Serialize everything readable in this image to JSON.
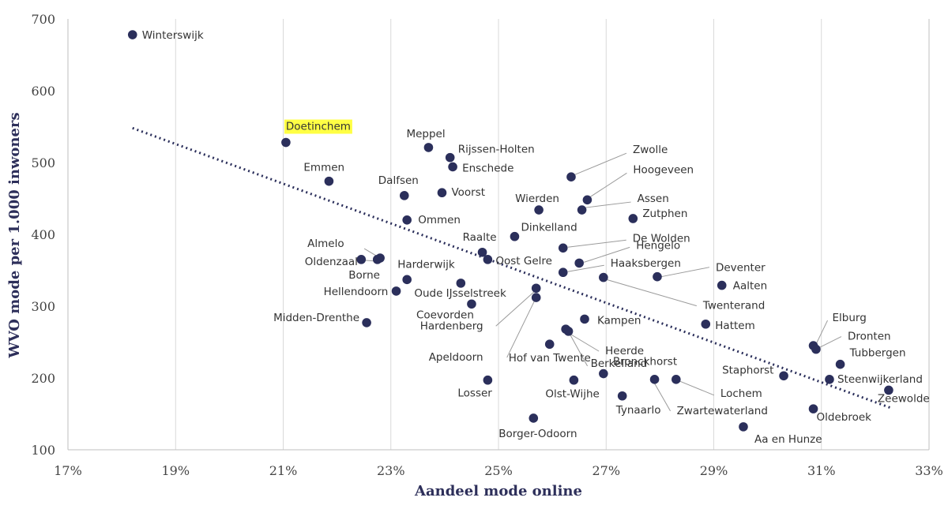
{
  "chart_data": {
    "type": "scatter",
    "title": "",
    "xlabel": "Aandeel mode online",
    "ylabel": "WVO mode per 1.000 inwoners",
    "xlim": [
      17,
      33
    ],
    "ylim": [
      100,
      700
    ],
    "x_ticks": [
      17,
      19,
      21,
      23,
      25,
      27,
      29,
      31,
      33
    ],
    "x_tick_labels": [
      "17%",
      "19%",
      "21%",
      "23%",
      "25%",
      "27%",
      "29%",
      "31%",
      "33%"
    ],
    "y_ticks": [
      100,
      200,
      300,
      400,
      500,
      600,
      700
    ],
    "y_tick_labels": [
      "100",
      "200",
      "300",
      "400",
      "500",
      "600",
      "700"
    ],
    "grid": "vertical",
    "highlight_color": "#ffff44",
    "point_color": "#2b2f5b",
    "trendline": {
      "style": "dotted",
      "x": [
        18.2,
        32.3
      ],
      "y": [
        548,
        158
      ]
    },
    "points": [
      {
        "name": "Winterswijk",
        "x": 18.2,
        "y": 678
      },
      {
        "name": "Doetinchem",
        "x": 21.05,
        "y": 528,
        "highlight": true
      },
      {
        "name": "Emmen",
        "x": 21.85,
        "y": 474
      },
      {
        "name": "Meppel",
        "x": 23.7,
        "y": 521
      },
      {
        "name": "Rijssen-Holten",
        "x": 24.1,
        "y": 507
      },
      {
        "name": "Enschede",
        "x": 24.15,
        "y": 494
      },
      {
        "name": "Dalfsen",
        "x": 23.25,
        "y": 454
      },
      {
        "name": "Voorst",
        "x": 23.95,
        "y": 458
      },
      {
        "name": "Ommen",
        "x": 23.3,
        "y": 420
      },
      {
        "name": "Almelo",
        "x": 22.8,
        "y": 367
      },
      {
        "name": "Oldenzaal",
        "x": 22.75,
        "y": 365
      },
      {
        "name": "Borne",
        "x": 22.45,
        "y": 365
      },
      {
        "name": "Harderwijk",
        "x": 23.3,
        "y": 337
      },
      {
        "name": "Hellendoorn",
        "x": 23.1,
        "y": 321
      },
      {
        "name": "Oude IJsselstreek",
        "x": 24.3,
        "y": 332
      },
      {
        "name": "Coevorden",
        "x": 24.5,
        "y": 303
      },
      {
        "name": "Midden-Drenthe",
        "x": 22.55,
        "y": 277
      },
      {
        "name": "Raalte",
        "x": 24.7,
        "y": 375
      },
      {
        "name": "Oost Gelre",
        "x": 24.8,
        "y": 365
      },
      {
        "name": "Dinkelland",
        "x": 25.3,
        "y": 397
      },
      {
        "name": "Wierden",
        "x": 25.75,
        "y": 434
      },
      {
        "name": "Hardenberg",
        "x": 25.7,
        "y": 325
      },
      {
        "name": "Apeldoorn",
        "x": 25.7,
        "y": 312
      },
      {
        "name": "Hof van Twente",
        "x": 25.95,
        "y": 247
      },
      {
        "name": "Losser",
        "x": 24.8,
        "y": 197
      },
      {
        "name": "Borger-Odoorn",
        "x": 25.65,
        "y": 144
      },
      {
        "name": "Zwolle",
        "x": 26.35,
        "y": 480
      },
      {
        "name": "Hoogeveen",
        "x": 26.65,
        "y": 448
      },
      {
        "name": "Assen",
        "x": 26.55,
        "y": 434
      },
      {
        "name": "De Wolden",
        "x": 26.2,
        "y": 381
      },
      {
        "name": "Hengelo",
        "x": 26.5,
        "y": 360
      },
      {
        "name": "Haaksbergen",
        "x": 26.2,
        "y": 347
      },
      {
        "name": "Twenterand",
        "x": 26.95,
        "y": 340
      },
      {
        "name": "Zutphen",
        "x": 27.5,
        "y": 422
      },
      {
        "name": "Kampen",
        "x": 26.6,
        "y": 282
      },
      {
        "name": "Heerde",
        "x": 26.25,
        "y": 268
      },
      {
        "name": "Berkelland",
        "x": 26.3,
        "y": 265
      },
      {
        "name": "Olst-Wijhe",
        "x": 26.4,
        "y": 197
      },
      {
        "name": "Bronckhorst",
        "x": 26.95,
        "y": 206
      },
      {
        "name": "Tynaarlo",
        "x": 27.3,
        "y": 175
      },
      {
        "name": "Zwartewaterland",
        "x": 27.9,
        "y": 198
      },
      {
        "name": "Lochem",
        "x": 28.3,
        "y": 198
      },
      {
        "name": "Deventer",
        "x": 27.95,
        "y": 341
      },
      {
        "name": "Aalten",
        "x": 29.15,
        "y": 329
      },
      {
        "name": "Hattem",
        "x": 28.85,
        "y": 275
      },
      {
        "name": "Staphorst",
        "x": 30.3,
        "y": 203
      },
      {
        "name": "Aa en Hunze",
        "x": 29.55,
        "y": 132
      },
      {
        "name": "Elburg",
        "x": 30.85,
        "y": 245
      },
      {
        "name": "Dronten",
        "x": 30.9,
        "y": 240
      },
      {
        "name": "Tubbergen",
        "x": 31.35,
        "y": 219
      },
      {
        "name": "Steenwijkerland",
        "x": 31.15,
        "y": 198
      },
      {
        "name": "Zeewolde",
        "x": 32.25,
        "y": 183
      },
      {
        "name": "Oldebroek",
        "x": 30.85,
        "y": 157
      }
    ]
  }
}
